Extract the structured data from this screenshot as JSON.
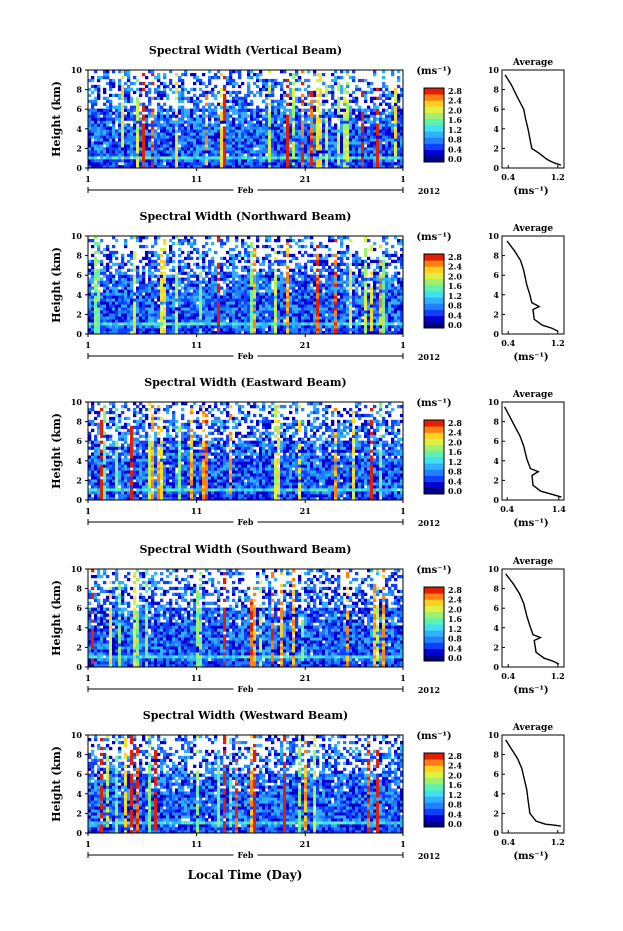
{
  "figure": {
    "xlabel_bottom": "Local Time (Day)",
    "month_label": "Feb",
    "year_label": "2012",
    "x_ticks": [
      "1",
      "11",
      "21",
      "1"
    ],
    "colorbar_unit": "(ms⁻¹)",
    "colorbar_ticks": [
      "2.8",
      "2.4",
      "2.0",
      "1.6",
      "1.2",
      "0.8",
      "0.4",
      "0.0"
    ],
    "ylabel": "Height (km)",
    "y_ticks": [
      "10",
      "8",
      "6",
      "4",
      "2",
      "0"
    ],
    "avg_title": "Average",
    "avg_xlabel": "(ms⁻¹)",
    "colorscale": [
      "#000080",
      "#0000d0",
      "#1040ff",
      "#2080ff",
      "#30b0ff",
      "#40e0f0",
      "#60f0b0",
      "#a0f070",
      "#e0f040",
      "#ffd020",
      "#ff8010",
      "#e02000"
    ]
  },
  "chart_data": [
    {
      "type": "heatmap",
      "title": "Spectral Width (Vertical Beam)",
      "ylabel": "Height (km)",
      "ylim": [
        0,
        10
      ],
      "x_ticks": [
        "1",
        "11",
        "21",
        "1"
      ],
      "colorbar": {
        "unit": "(ms⁻¹)",
        "range": [
          0.0,
          2.8
        ],
        "ticks": [
          0.0,
          0.4,
          0.8,
          1.2,
          1.6,
          2.0,
          2.4,
          2.8
        ]
      },
      "average_profile": {
        "title": "Average",
        "xlabel": "(ms⁻¹)",
        "x_ticks": [
          "0.4",
          "1.2"
        ],
        "xlim": [
          0.3,
          1.3
        ],
        "ylim": [
          0,
          10
        ],
        "x": [
          0.35,
          0.45,
          0.55,
          0.65,
          0.68,
          0.72,
          0.75,
          0.78,
          0.9,
          1.0,
          1.05,
          1.15,
          1.25
        ],
        "y": [
          9.5,
          8.5,
          7.2,
          6.0,
          5.0,
          4.0,
          3.0,
          2.0,
          1.5,
          1.0,
          0.8,
          0.5,
          0.3
        ]
      }
    },
    {
      "type": "heatmap",
      "title": "Spectral Width (Northward Beam)",
      "ylabel": "Height (km)",
      "ylim": [
        0,
        10
      ],
      "x_ticks": [
        "1",
        "11",
        "21",
        "1"
      ],
      "colorbar": {
        "unit": "(ms⁻¹)",
        "range": [
          0.0,
          2.8
        ],
        "ticks": [
          0.0,
          0.4,
          0.8,
          1.2,
          1.6,
          2.0,
          2.4,
          2.8
        ]
      },
      "average_profile": {
        "title": "Average",
        "xlabel": "(ms⁻¹)",
        "x_ticks": [
          "0.4",
          "1.2"
        ],
        "xlim": [
          0.3,
          1.3
        ],
        "ylim": [
          0,
          10
        ],
        "x": [
          0.38,
          0.5,
          0.6,
          0.65,
          0.7,
          0.75,
          0.78,
          0.9,
          0.8,
          0.82,
          0.95,
          1.1,
          1.2
        ],
        "y": [
          9.5,
          8.5,
          7.5,
          6.5,
          5.0,
          4.0,
          3.2,
          2.8,
          2.5,
          1.5,
          0.9,
          0.6,
          0.3
        ]
      }
    },
    {
      "type": "heatmap",
      "title": "Spectral Width (Eastward Beam)",
      "ylabel": "Height (km)",
      "ylim": [
        0,
        10
      ],
      "x_ticks": [
        "1",
        "11",
        "21",
        "1"
      ],
      "colorbar": {
        "unit": "(ms⁻¹)",
        "range": [
          0.0,
          2.8
        ],
        "ticks": [
          0.0,
          0.4,
          0.8,
          1.2,
          1.6,
          2.0,
          2.4,
          2.8
        ]
      },
      "average_profile": {
        "title": "Average",
        "xlabel": "(ms⁻¹)",
        "x_ticks": [
          "0.4",
          "1.4"
        ],
        "xlim": [
          0.3,
          1.5
        ],
        "ylim": [
          0,
          10
        ],
        "x": [
          0.35,
          0.45,
          0.55,
          0.65,
          0.72,
          0.78,
          0.85,
          1.0,
          0.88,
          0.9,
          1.05,
          1.25,
          1.45
        ],
        "y": [
          9.5,
          8.5,
          7.5,
          6.5,
          5.5,
          4.2,
          3.2,
          2.9,
          2.5,
          1.5,
          0.9,
          0.6,
          0.3
        ]
      }
    },
    {
      "type": "heatmap",
      "title": "Spectral Width (Southward Beam)",
      "ylabel": "Height (km)",
      "ylim": [
        0,
        10
      ],
      "x_ticks": [
        "1",
        "11",
        "21",
        "1"
      ],
      "colorbar": {
        "unit": "(ms⁻¹)",
        "range": [
          0.0,
          2.8
        ],
        "ticks": [
          0.0,
          0.4,
          0.8,
          1.2,
          1.6,
          2.0,
          2.4,
          2.8
        ]
      },
      "average_profile": {
        "title": "Average",
        "xlabel": "(ms⁻¹)",
        "x_ticks": [
          "0.4",
          "1.2"
        ],
        "xlim": [
          0.3,
          1.3
        ],
        "ylim": [
          0,
          10
        ],
        "x": [
          0.36,
          0.48,
          0.58,
          0.65,
          0.7,
          0.75,
          0.8,
          0.92,
          0.82,
          0.85,
          0.98,
          1.12,
          1.22
        ],
        "y": [
          9.5,
          8.5,
          7.5,
          6.5,
          5.2,
          4.2,
          3.3,
          3.0,
          2.7,
          1.5,
          0.9,
          0.6,
          0.3
        ]
      }
    },
    {
      "type": "heatmap",
      "title": "Spectral Width (Westward Beam)",
      "ylabel": "Height (km)",
      "ylim": [
        0,
        10
      ],
      "x_ticks": [
        "1",
        "11",
        "21",
        "1"
      ],
      "colorbar": {
        "unit": "(ms⁻¹)",
        "range": [
          0.0,
          2.8
        ],
        "ticks": [
          0.0,
          0.4,
          0.8,
          1.2,
          1.6,
          2.0,
          2.4,
          2.8
        ]
      },
      "average_profile": {
        "title": "Average",
        "xlabel": "(ms⁻¹)",
        "x_ticks": [
          "0.4",
          "1.2"
        ],
        "xlim": [
          0.3,
          1.3
        ],
        "ylim": [
          0,
          10
        ],
        "x": [
          0.36,
          0.45,
          0.55,
          0.62,
          0.66,
          0.7,
          0.72,
          0.75,
          0.85,
          1.0,
          1.15,
          1.25
        ],
        "y": [
          9.5,
          8.6,
          7.6,
          6.6,
          5.5,
          4.4,
          3.4,
          2.0,
          1.2,
          0.9,
          0.8,
          0.7
        ]
      }
    }
  ]
}
